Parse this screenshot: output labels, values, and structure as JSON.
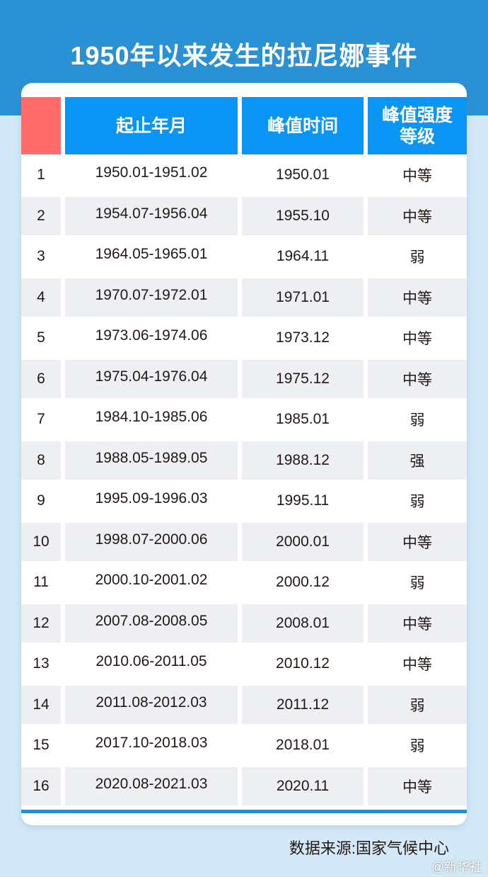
{
  "title": "1950年以来发生的拉尼娜事件",
  "table": {
    "headers": [
      "",
      "起止年月",
      "峰值时间",
      "峰值强度等级"
    ],
    "rows": [
      [
        "1",
        "1950.01-1951.02",
        "1950.01",
        "中等"
      ],
      [
        "2",
        "1954.07-1956.04",
        "1955.10",
        "中等"
      ],
      [
        "3",
        "1964.05-1965.01",
        "1964.11",
        "弱"
      ],
      [
        "4",
        "1970.07-1972.01",
        "1971.01",
        "中等"
      ],
      [
        "5",
        "1973.06-1974.06",
        "1973.12",
        "中等"
      ],
      [
        "6",
        "1975.04-1976.04",
        "1975.12",
        "中等"
      ],
      [
        "7",
        "1984.10-1985.06",
        "1985.01",
        "弱"
      ],
      [
        "8",
        "1988.05-1989.05",
        "1988.12",
        "强"
      ],
      [
        "9",
        "1995.09-1996.03",
        "1995.11",
        "弱"
      ],
      [
        "10",
        "1998.07-2000.06",
        "2000.01",
        "中等"
      ],
      [
        "11",
        "2000.10-2001.02",
        "2000.12",
        "弱"
      ],
      [
        "12",
        "2007.08-2008.05",
        "2008.01",
        "中等"
      ],
      [
        "13",
        "2010.06-2011.05",
        "2010.12",
        "中等"
      ],
      [
        "14",
        "2011.08-2012.03",
        "2011.12",
        "弱"
      ],
      [
        "15",
        "2017.10-2018.03",
        "2018.01",
        "弱"
      ],
      [
        "16",
        "2020.08-2021.03",
        "2020.11",
        "中等"
      ]
    ]
  },
  "source": "数据来源:国家气候中心",
  "watermark": "@新华社",
  "colors": {
    "band": "#2b91d5",
    "header": "#0a95f5",
    "index_header": "#ff6b6b",
    "background": "#d3e9f8",
    "alt_row": "#eeeff3"
  }
}
